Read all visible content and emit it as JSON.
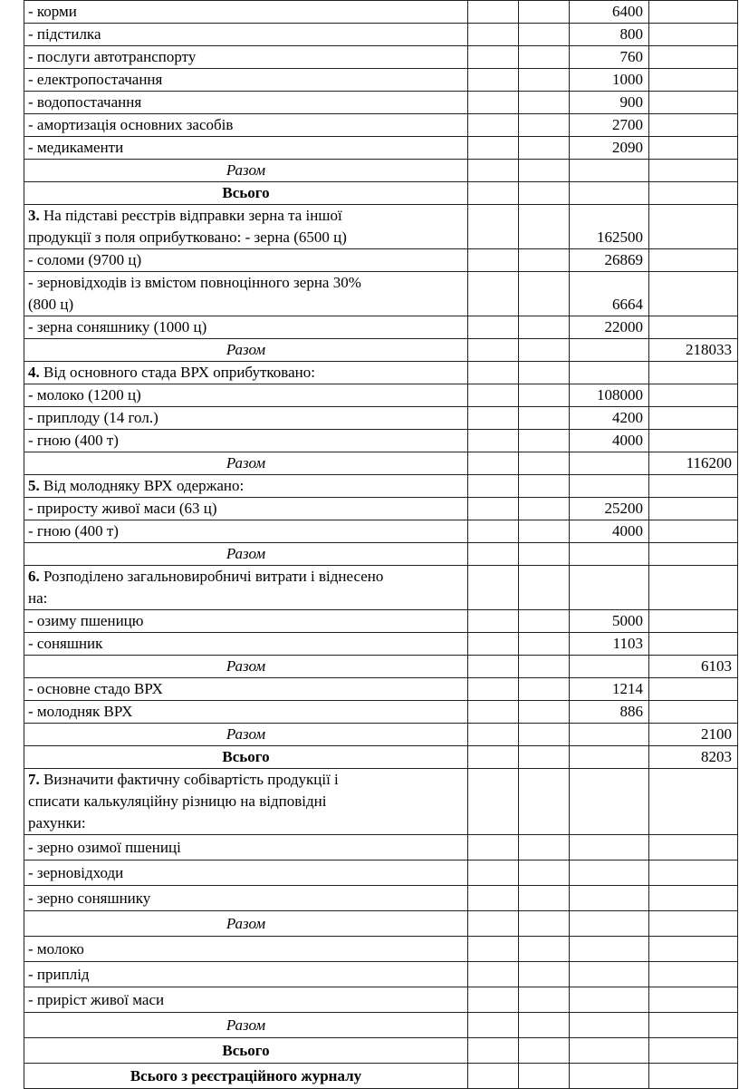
{
  "rows": [
    {
      "kind": "item",
      "lines": [
        "- корми"
      ],
      "col4": "6400",
      "col5": ""
    },
    {
      "kind": "item",
      "lines": [
        "- підстилка"
      ],
      "col4": "800",
      "col5": ""
    },
    {
      "kind": "item",
      "lines": [
        "- послуги автотранспорту"
      ],
      "col4": "760",
      "col5": ""
    },
    {
      "kind": "item",
      "lines": [
        "- електропостачання"
      ],
      "col4": "1000",
      "col5": ""
    },
    {
      "kind": "item",
      "lines": [
        "- водопостачання"
      ],
      "col4": "900",
      "col5": ""
    },
    {
      "kind": "item",
      "lines": [
        "- амортизація основних засобів"
      ],
      "col4": "2700",
      "col5": ""
    },
    {
      "kind": "item",
      "lines": [
        "- медикаменти"
      ],
      "col4": "2090",
      "col5": ""
    },
    {
      "kind": "razom",
      "lines": [
        "Разом"
      ],
      "col4": "",
      "col5": ""
    },
    {
      "kind": "vsogo",
      "lines": [
        "Всього"
      ],
      "col4": "",
      "col5": ""
    },
    {
      "kind": "item",
      "num": "3.",
      "lines": [
        " На підставі реєстрів відправки зерна та іншої",
        "продукції з поля оприбутковано: - зерна (6500 ц)"
      ],
      "col4": "162500",
      "col5": ""
    },
    {
      "kind": "item",
      "lines": [
        "- соломи (9700 ц)"
      ],
      "col4": "26869",
      "col5": ""
    },
    {
      "kind": "item",
      "lines": [
        "- зерновідходів із вмістом повноцінного зерна 30%",
        "(800 ц)"
      ],
      "col4": "6664",
      "col5": ""
    },
    {
      "kind": "item",
      "lines": [
        "- зерна соняшнику (1000 ц)"
      ],
      "col4": "22000",
      "col5": ""
    },
    {
      "kind": "razom",
      "lines": [
        "Разом"
      ],
      "col4": "",
      "col5": "218033"
    },
    {
      "kind": "item",
      "num": "4.",
      "lines": [
        " Від основного стада ВРХ оприбутковано:"
      ],
      "col4": "",
      "col5": ""
    },
    {
      "kind": "item",
      "lines": [
        "- молоко (1200 ц)"
      ],
      "col4": "108000",
      "col5": ""
    },
    {
      "kind": "item",
      "lines": [
        "- приплоду (14 гол.)"
      ],
      "col4": "4200",
      "col5": ""
    },
    {
      "kind": "item",
      "lines": [
        "- гною (400 т)"
      ],
      "col4": "4000",
      "col5": ""
    },
    {
      "kind": "razom",
      "lines": [
        "Разом"
      ],
      "col4": "",
      "col5": "116200"
    },
    {
      "kind": "item",
      "num": "5.",
      "lines": [
        " Від молодняку ВРХ одержано:"
      ],
      "col4": "",
      "col5": ""
    },
    {
      "kind": "item",
      "lines": [
        "- приросту живої маси (63 ц)"
      ],
      "col4": "25200",
      "col5": ""
    },
    {
      "kind": "item",
      "lines": [
        "- гною (400 т)"
      ],
      "col4": "4000",
      "col5": ""
    },
    {
      "kind": "razom",
      "lines": [
        "Разом"
      ],
      "col4": "",
      "col5": ""
    },
    {
      "kind": "item",
      "num": "6.",
      "lines": [
        " Розподілено загальновиробничі витрати і віднесено",
        "на:"
      ],
      "col4": "",
      "col5": ""
    },
    {
      "kind": "item",
      "lines": [
        "- озиму пшеницю"
      ],
      "col4": "5000",
      "col5": ""
    },
    {
      "kind": "item",
      "lines": [
        "- соняшник"
      ],
      "col4": "1103",
      "col5": ""
    },
    {
      "kind": "razom",
      "lines": [
        "Разом"
      ],
      "col4": "",
      "col5": "6103"
    },
    {
      "kind": "item",
      "lines": [
        "- основне стадо ВРХ"
      ],
      "col4": "1214",
      "col5": ""
    },
    {
      "kind": "item",
      "lines": [
        "- молодняк ВРХ"
      ],
      "col4": "886",
      "col5": ""
    },
    {
      "kind": "razom",
      "lines": [
        "Разом"
      ],
      "col4": "",
      "col5": "2100"
    },
    {
      "kind": "vsogo",
      "lines": [
        "Всього"
      ],
      "col4": "",
      "col5": "8203"
    },
    {
      "kind": "item",
      "num": "7.",
      "lines": [
        " Визначити фактичну собівартість продукції і",
        "списати калькуляційну різницю на відповідні",
        "рахунки:"
      ],
      "col4": "",
      "col5": ""
    },
    {
      "kind": "item",
      "tall": true,
      "lines": [
        "- зерно озимої пшениці"
      ],
      "col4": "",
      "col5": ""
    },
    {
      "kind": "item",
      "tall": true,
      "lines": [
        "- зерновідходи"
      ],
      "col4": "",
      "col5": ""
    },
    {
      "kind": "item",
      "tall": true,
      "lines": [
        "- зерно соняшнику"
      ],
      "col4": "",
      "col5": ""
    },
    {
      "kind": "razom",
      "tall": true,
      "lines": [
        "Разом"
      ],
      "col4": "",
      "col5": ""
    },
    {
      "kind": "item",
      "tall": true,
      "lines": [
        "- молоко"
      ],
      "col4": "",
      "col5": ""
    },
    {
      "kind": "item",
      "tall": true,
      "lines": [
        "- приплід"
      ],
      "col4": "",
      "col5": ""
    },
    {
      "kind": "item",
      "tall": true,
      "lines": [
        "- приріст живої маси"
      ],
      "col4": "",
      "col5": ""
    },
    {
      "kind": "razom",
      "tall": true,
      "lines": [
        "Разом"
      ],
      "col4": "",
      "col5": ""
    },
    {
      "kind": "vsogo",
      "tall": true,
      "lines": [
        "Всього"
      ],
      "col4": "",
      "col5": ""
    },
    {
      "kind": "vsogo",
      "tall": true,
      "lines": [
        "Всього з реєстраційного журналу"
      ],
      "col4": "",
      "col5": ""
    }
  ]
}
